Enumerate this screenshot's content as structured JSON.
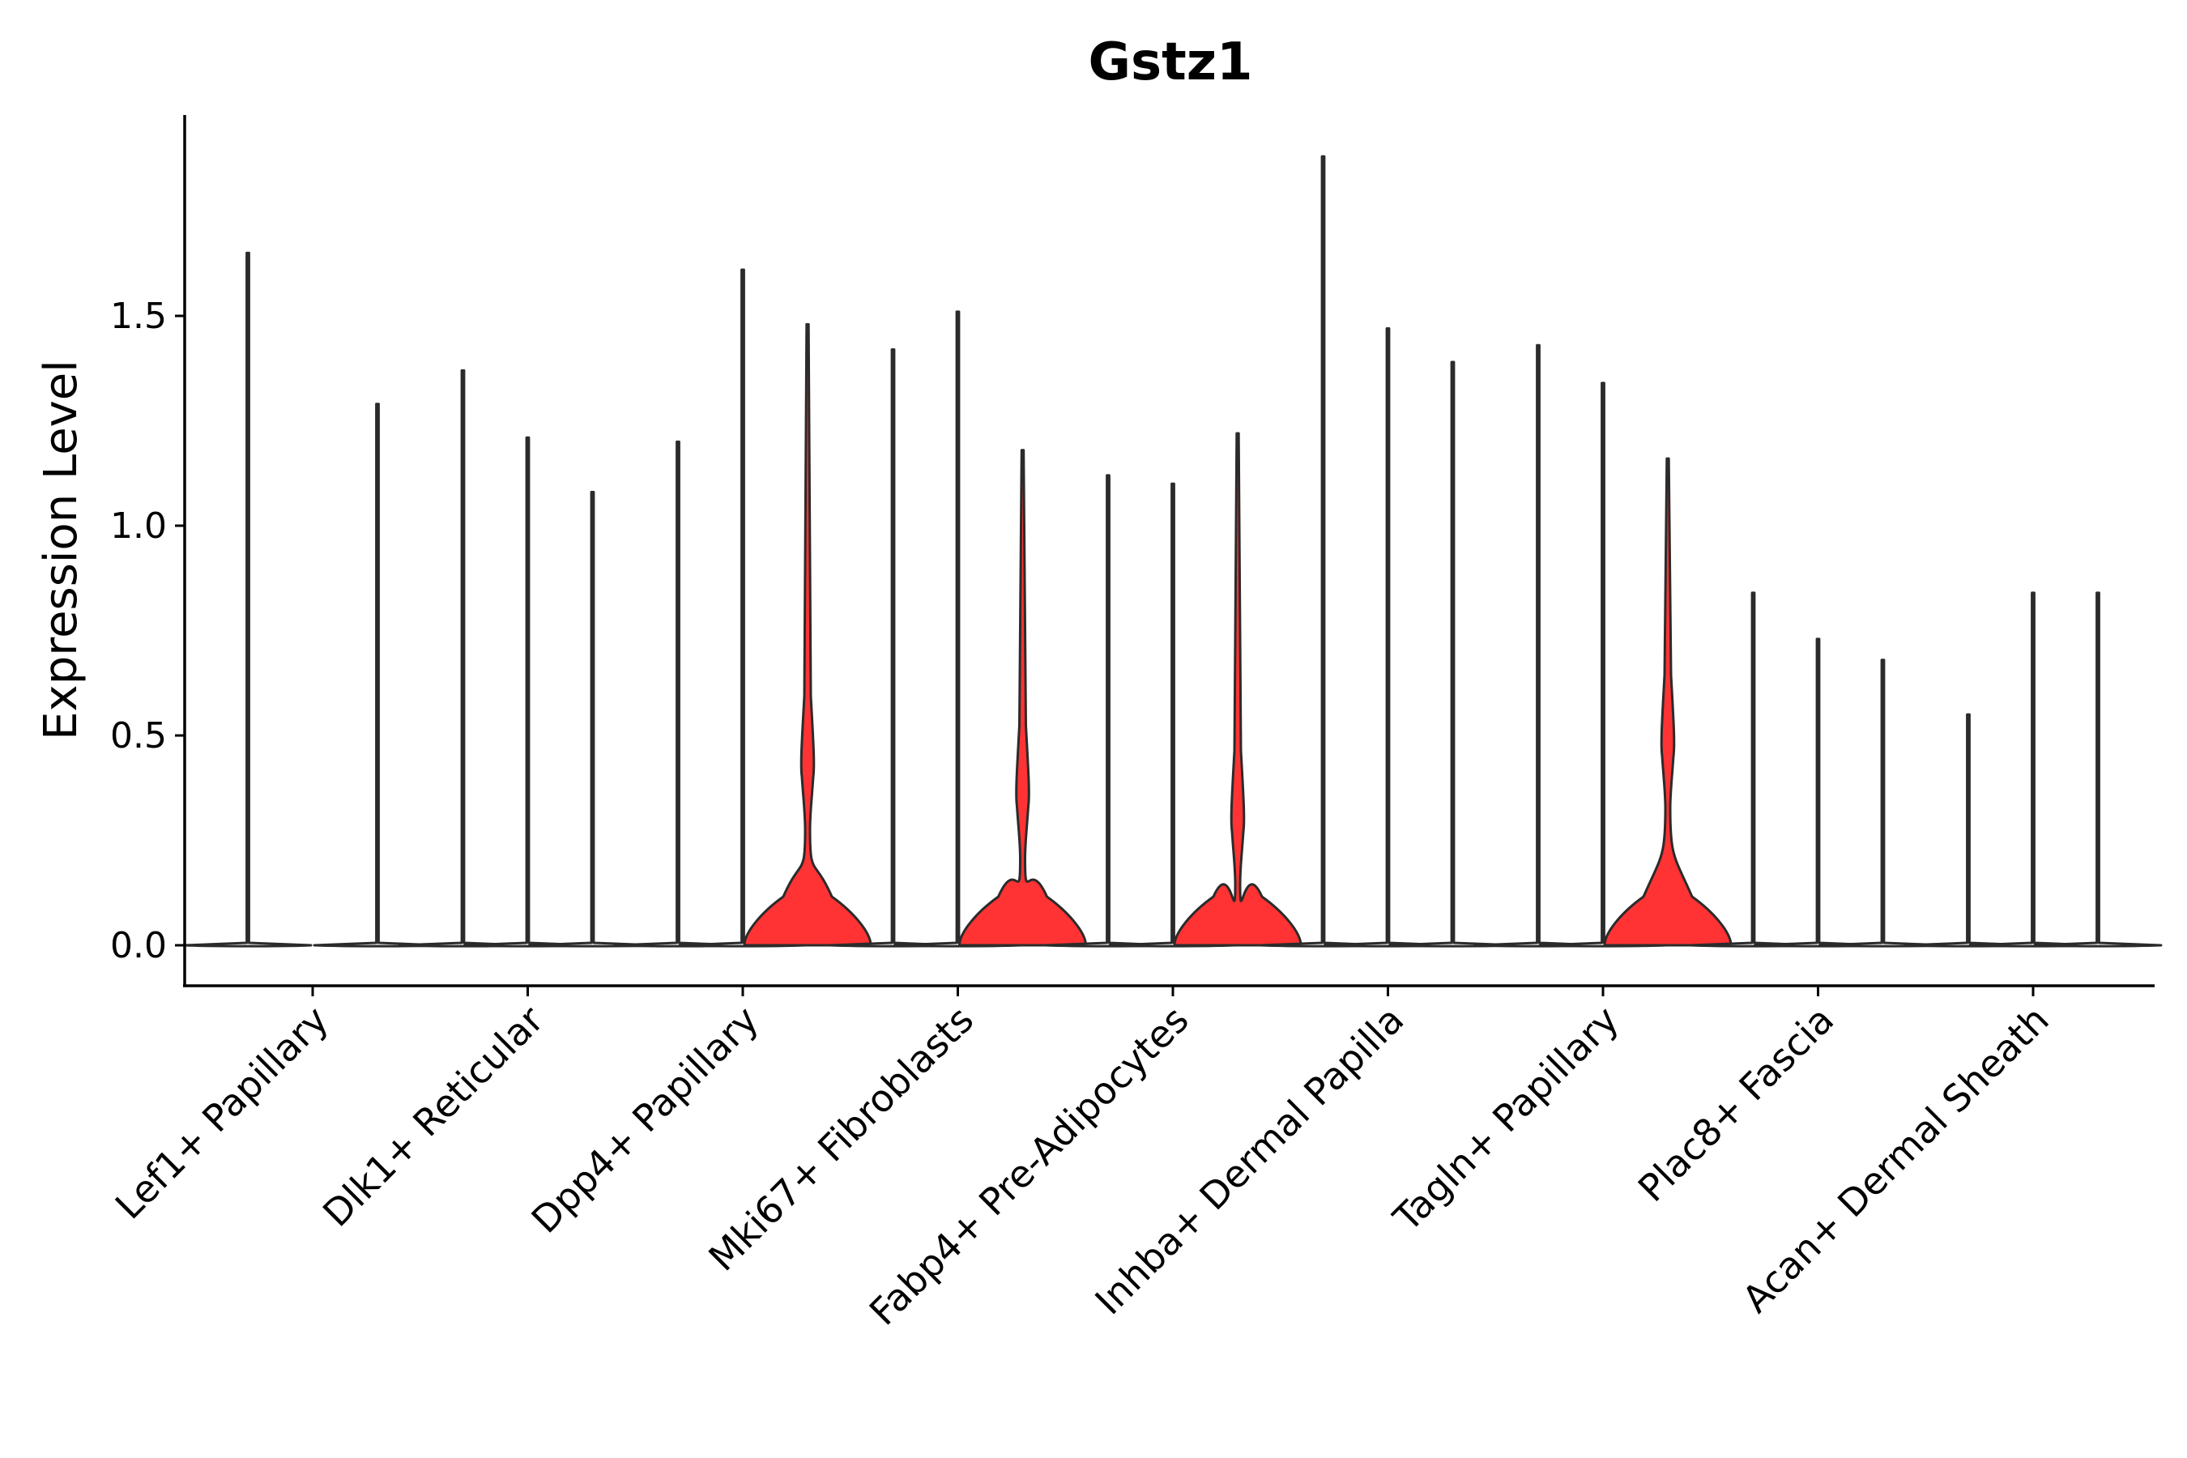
{
  "chart_data": {
    "type": "violin",
    "title": "Gstz1",
    "xlabel": "",
    "ylabel": "Expression Level",
    "ylim": [
      -0.1,
      1.97
    ],
    "yticks": [
      0.0,
      0.5,
      1.0,
      1.5
    ],
    "ytick_labels": [
      "0.0",
      "0.5",
      "1.0",
      "1.5"
    ],
    "highlight_color": "#ff3333",
    "line_color": "#2b2b2b",
    "categories": [
      "Lef1+ Papillary",
      "Dlk1+ Reticular",
      "Dpp4+ Papillary",
      "Mki67+ Fibroblasts",
      "Fabp4+ Pre-Adipocytes",
      "Inhba+ Dermal Papilla",
      "Tagln+ Papillary",
      "Plac8+ Fascia",
      "Acan+ Dermal Sheath"
    ],
    "groups": [
      {
        "category": "Lef1+ Papillary",
        "violins": [
          {
            "slot": 0,
            "max": 1.65,
            "shape": "line"
          },
          {
            "slot": 2,
            "max": 1.29,
            "shape": "line"
          }
        ]
      },
      {
        "category": "Dlk1+ Reticular",
        "violins": [
          {
            "slot": 0,
            "max": 1.37,
            "shape": "line"
          },
          {
            "slot": 1,
            "max": 1.21,
            "shape": "line"
          },
          {
            "slot": 2,
            "max": 1.08,
            "shape": "line"
          }
        ]
      },
      {
        "category": "Dpp4+ Papillary",
        "violins": [
          {
            "slot": 0,
            "max": 1.2,
            "shape": "line"
          },
          {
            "slot": 1,
            "max": 1.61,
            "shape": "line"
          },
          {
            "slot": 2,
            "max": 1.48,
            "shape": "filled",
            "secondary_mode": 0.43
          }
        ]
      },
      {
        "category": "Mki67+ Fibroblasts",
        "violins": [
          {
            "slot": 0,
            "max": 1.42,
            "shape": "line"
          },
          {
            "slot": 1,
            "max": 1.51,
            "shape": "line"
          },
          {
            "slot": 2,
            "max": 1.18,
            "shape": "filled",
            "secondary_mode": 0.36
          }
        ]
      },
      {
        "category": "Fabp4+ Pre-Adipocytes",
        "violins": [
          {
            "slot": 0,
            "max": 1.12,
            "shape": "line"
          },
          {
            "slot": 1,
            "max": 1.1,
            "shape": "line"
          },
          {
            "slot": 2,
            "max": 1.22,
            "shape": "filled",
            "secondary_mode": 0.3
          }
        ]
      },
      {
        "category": "Inhba+ Dermal Papilla",
        "violins": [
          {
            "slot": 0,
            "max": 1.88,
            "shape": "line"
          },
          {
            "slot": 1,
            "max": 1.47,
            "shape": "line"
          },
          {
            "slot": 2,
            "max": 1.39,
            "shape": "line"
          }
        ]
      },
      {
        "category": "Tagln+ Papillary",
        "violins": [
          {
            "slot": 0,
            "max": 1.43,
            "shape": "line"
          },
          {
            "slot": 1,
            "max": 1.34,
            "shape": "line"
          },
          {
            "slot": 2,
            "max": 1.16,
            "shape": "filled",
            "secondary_mode": 0.48
          }
        ]
      },
      {
        "category": "Plac8+ Fascia",
        "violins": [
          {
            "slot": 0,
            "max": 0.84,
            "shape": "line"
          },
          {
            "slot": 1,
            "max": 0.73,
            "shape": "line"
          },
          {
            "slot": 2,
            "max": 0.68,
            "shape": "line"
          }
        ]
      },
      {
        "category": "Acan+ Dermal Sheath",
        "violins": [
          {
            "slot": 0,
            "max": 0.55,
            "shape": "line"
          },
          {
            "slot": 1,
            "max": 0.84,
            "shape": "line"
          },
          {
            "slot": 2,
            "max": 0.84,
            "shape": "line"
          }
        ]
      }
    ]
  }
}
